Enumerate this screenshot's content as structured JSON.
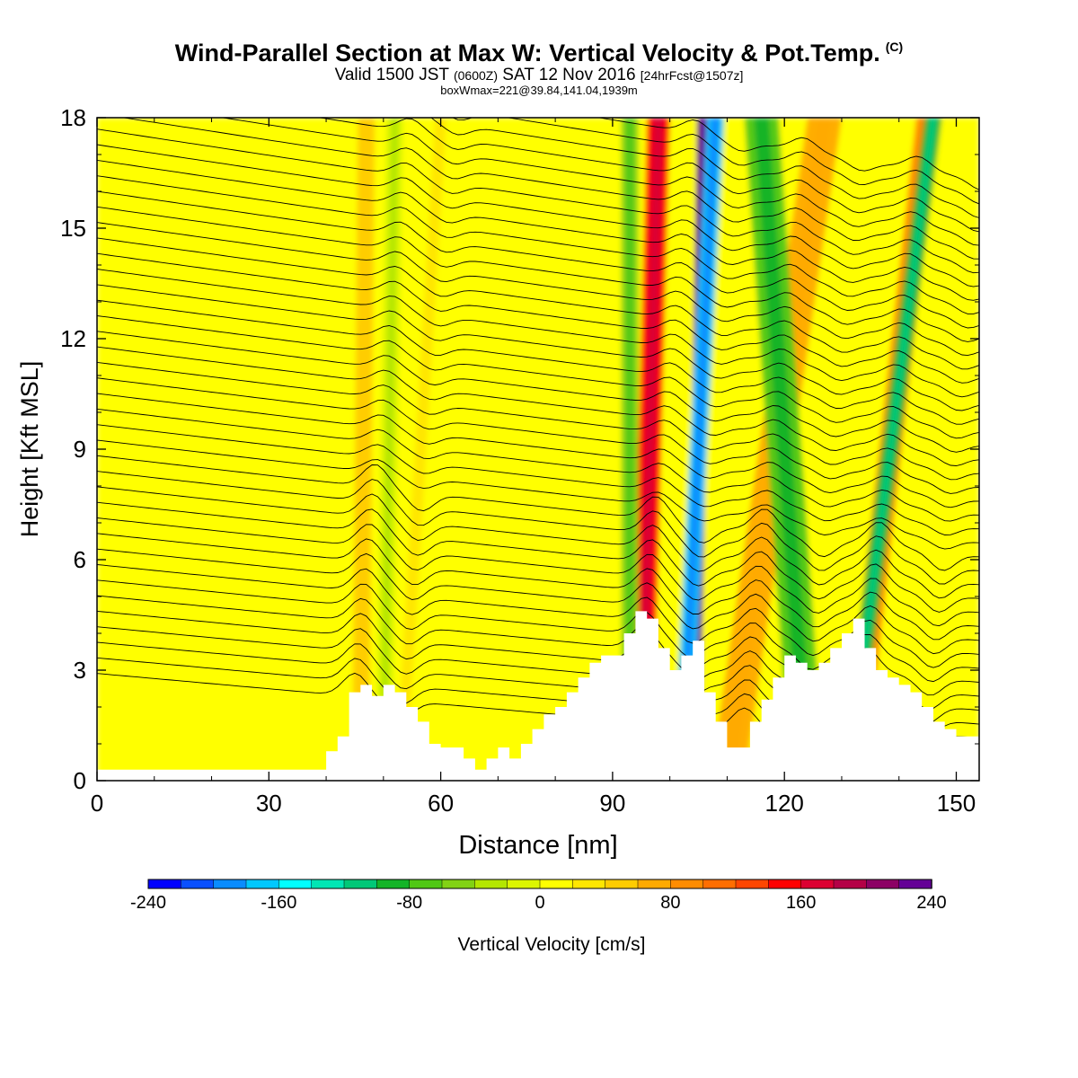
{
  "header": {
    "title": "Wind-Parallel Section at Max W: Vertical Velocity & Pot.Temp.",
    "copyright_mark": "(C)",
    "valid_prefix": "Valid 1500 JST",
    "valid_utc": "(0600Z)",
    "valid_date": "SAT 12 Nov 2016",
    "forecast": "[24hrFcst@1507z]",
    "box_info": "boxWmax=221@39.84,141.04,1939m"
  },
  "chart_data": {
    "type": "heatmap",
    "xlabel": "Distance [nm]",
    "ylabel": "Height [Kft MSL]",
    "xlim": [
      0,
      154
    ],
    "ylim": [
      0,
      18
    ],
    "x_ticks": [
      0,
      30,
      60,
      90,
      120,
      150
    ],
    "y_ticks": [
      0,
      3,
      6,
      9,
      12,
      15,
      18
    ],
    "colorbar": {
      "label": "Vertical Velocity [cm/s]",
      "range": [
        -240,
        240
      ],
      "tick_values": [
        -240,
        -160,
        -80,
        0,
        80,
        160,
        240
      ],
      "colors": [
        "#0000ff",
        "#0a50ff",
        "#0a8cff",
        "#00c8ff",
        "#00ffff",
        "#00e6b4",
        "#00c878",
        "#14b428",
        "#50c814",
        "#82d214",
        "#b4e600",
        "#dcf500",
        "#ffff00",
        "#ffe600",
        "#ffcc00",
        "#ffaa00",
        "#ff8c00",
        "#ff6e00",
        "#ff4600",
        "#ff0000",
        "#dc0032",
        "#b40046",
        "#8c0064",
        "#640096"
      ]
    },
    "terrain_profile": [
      [
        0,
        0.3
      ],
      [
        38,
        0.3
      ],
      [
        40,
        0.8
      ],
      [
        42,
        1.2
      ],
      [
        44,
        2.4
      ],
      [
        46,
        2.6
      ],
      [
        48,
        2.3
      ],
      [
        50,
        2.6
      ],
      [
        52,
        2.4
      ],
      [
        54,
        2.0
      ],
      [
        56,
        1.6
      ],
      [
        58,
        1.0
      ],
      [
        60,
        0.9
      ],
      [
        62,
        0.9
      ],
      [
        64,
        0.6
      ],
      [
        66,
        0.3
      ],
      [
        68,
        0.6
      ],
      [
        70,
        0.9
      ],
      [
        72,
        0.6
      ],
      [
        74,
        1.0
      ],
      [
        76,
        1.4
      ],
      [
        78,
        1.8
      ],
      [
        80,
        2.0
      ],
      [
        82,
        2.4
      ],
      [
        84,
        2.8
      ],
      [
        86,
        3.2
      ],
      [
        88,
        3.4
      ],
      [
        90,
        3.4
      ],
      [
        92,
        4.0
      ],
      [
        94,
        4.6
      ],
      [
        96,
        4.4
      ],
      [
        98,
        3.6
      ],
      [
        100,
        3.0
      ],
      [
        102,
        3.4
      ],
      [
        104,
        3.8
      ],
      [
        106,
        2.4
      ],
      [
        108,
        1.6
      ],
      [
        110,
        0.9
      ],
      [
        112,
        0.9
      ],
      [
        114,
        1.6
      ],
      [
        116,
        2.2
      ],
      [
        118,
        2.8
      ],
      [
        120,
        3.4
      ],
      [
        122,
        3.2
      ],
      [
        124,
        3.0
      ],
      [
        126,
        3.2
      ],
      [
        128,
        3.6
      ],
      [
        130,
        4.0
      ],
      [
        132,
        4.4
      ],
      [
        134,
        3.6
      ],
      [
        136,
        3.0
      ],
      [
        138,
        2.8
      ],
      [
        140,
        2.6
      ],
      [
        142,
        2.4
      ],
      [
        144,
        2.0
      ],
      [
        146,
        1.6
      ],
      [
        148,
        1.4
      ],
      [
        150,
        1.2
      ],
      [
        152,
        1.2
      ],
      [
        154,
        1.2
      ]
    ],
    "updraft_bands": [
      {
        "x_bottom": 46,
        "x_top": 47,
        "width": 3,
        "w": 45
      },
      {
        "x_bottom": 53,
        "x_top": 60,
        "width": 2,
        "w": 25
      },
      {
        "x_bottom": 95,
        "x_top": 98,
        "width": 4,
        "w": 150
      },
      {
        "x_bottom": 104,
        "x_top": 106,
        "width": 2.5,
        "w": 220
      },
      {
        "x_bottom": 110,
        "x_top": 127,
        "width": 6,
        "w": 60
      },
      {
        "x_bottom": 132,
        "x_top": 145,
        "width": 4,
        "w": 90
      }
    ],
    "downdraft_bands": [
      {
        "x_bottom": 50,
        "x_top": 52,
        "width": 3,
        "w": -20
      },
      {
        "x_bottom": 93,
        "x_top": 93,
        "width": 3,
        "w": -60
      },
      {
        "x_bottom": 102,
        "x_top": 108,
        "width": 3,
        "w": -170
      },
      {
        "x_bottom": 124,
        "x_top": 116,
        "width": 6,
        "w": -80
      },
      {
        "x_bottom": 131,
        "x_top": 146,
        "width": 3,
        "w": -90
      }
    ]
  }
}
